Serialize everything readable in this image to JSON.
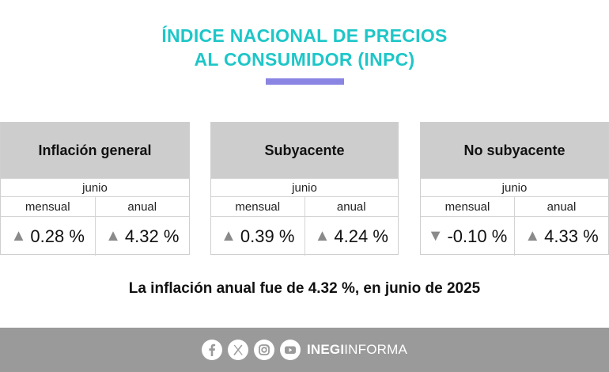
{
  "header": {
    "title_line1": "ÍNDICE NACIONAL DE PRECIOS",
    "title_line2": "AL CONSUMIDOR (INPC)"
  },
  "colors": {
    "title": "#1ec6c8",
    "accent_bar": "#8a84e3",
    "card_header": "#cdcdcd",
    "footer": "#9a9a9a",
    "arrow": "#8a8a8a"
  },
  "cards": [
    {
      "title": "Inflación general",
      "month": "junio",
      "col1_label": "mensual",
      "col1_arrow": "▲",
      "col1_value": "0.28 %",
      "col2_label": "anual",
      "col2_arrow": "▲",
      "col2_value": "4.32 %"
    },
    {
      "title": "Subyacente",
      "month": "junio",
      "col1_label": "mensual",
      "col1_arrow": "▲",
      "col1_value": "0.39 %",
      "col2_label": "anual",
      "col2_arrow": "▲",
      "col2_value": "4.24 %"
    },
    {
      "title": "No subyacente",
      "month": "junio",
      "col1_label": "mensual",
      "col1_arrow": "▼",
      "col1_value": "-0.10 %",
      "col2_label": "anual",
      "col2_arrow": "▲",
      "col2_value": "4.33 %"
    }
  ],
  "summary": "La inflación anual fue de 4.32 %, en junio de 2025",
  "footer": {
    "icons": [
      "facebook-icon",
      "x-icon",
      "instagram-icon",
      "youtube-icon"
    ],
    "brand_bold": "INEGI",
    "brand_light": "INFORMA"
  }
}
